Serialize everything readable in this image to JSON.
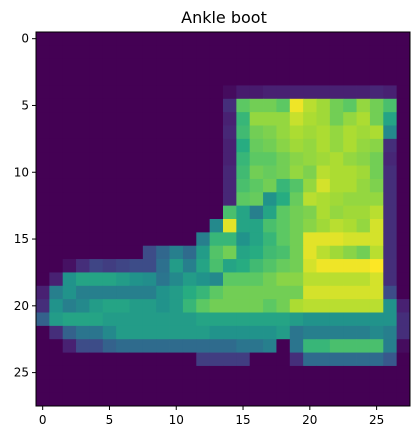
{
  "chart_data": {
    "type": "heatmap",
    "title": "Ankle boot",
    "xlabel": "",
    "ylabel": "",
    "colormap": "viridis",
    "colors": {
      "low": "#440154",
      "mid": "#21918c",
      "high": "#fde725"
    },
    "shape": [
      28,
      28
    ],
    "value_range": [
      0,
      255
    ],
    "xlim": [
      -0.5,
      27.5
    ],
    "ylim": [
      27.5,
      -0.5
    ],
    "x_ticks": [
      {
        "value": 0,
        "label": "0"
      },
      {
        "value": 5,
        "label": "5"
      },
      {
        "value": 10,
        "label": "10"
      },
      {
        "value": 15,
        "label": "15"
      },
      {
        "value": 20,
        "label": "20"
      },
      {
        "value": 25,
        "label": "25"
      }
    ],
    "y_ticks": [
      {
        "value": 0,
        "label": "0"
      },
      {
        "value": 5,
        "label": "5"
      },
      {
        "value": 10,
        "label": "10"
      },
      {
        "value": 15,
        "label": "15"
      },
      {
        "value": 20,
        "label": "20"
      },
      {
        "value": 25,
        "label": "25"
      }
    ],
    "grid": false,
    "legend": "none",
    "values": [
      [
        0,
        0,
        0,
        0,
        0,
        0,
        0,
        0,
        0,
        0,
        0,
        0,
        0,
        0,
        0,
        0,
        0,
        0,
        0,
        0,
        0,
        0,
        0,
        0,
        0,
        0,
        0,
        0
      ],
      [
        0,
        0,
        0,
        0,
        0,
        0,
        0,
        0,
        0,
        0,
        0,
        0,
        0,
        0,
        0,
        0,
        0,
        0,
        0,
        0,
        0,
        0,
        0,
        0,
        0,
        0,
        0,
        0
      ],
      [
        0,
        0,
        0,
        0,
        0,
        0,
        0,
        0,
        0,
        0,
        0,
        0,
        0,
        0,
        0,
        0,
        0,
        0,
        0,
        0,
        0,
        0,
        0,
        0,
        0,
        0,
        0,
        0
      ],
      [
        0,
        0,
        0,
        0,
        0,
        0,
        0,
        0,
        0,
        0,
        0,
        0,
        0,
        0,
        0,
        0,
        0,
        0,
        0,
        0,
        0,
        0,
        0,
        0,
        0,
        0,
        0,
        0
      ],
      [
        0,
        0,
        0,
        0,
        0,
        0,
        0,
        0,
        0,
        0,
        0,
        0,
        0,
        0,
        10,
        25,
        25,
        30,
        30,
        30,
        30,
        30,
        30,
        30,
        30,
        35,
        30,
        0
      ],
      [
        0,
        0,
        0,
        0,
        0,
        0,
        0,
        0,
        0,
        0,
        0,
        0,
        0,
        0,
        40,
        190,
        200,
        200,
        190,
        250,
        230,
        220,
        200,
        190,
        215,
        200,
        180,
        0
      ],
      [
        0,
        0,
        0,
        0,
        0,
        0,
        0,
        0,
        0,
        0,
        0,
        0,
        0,
        0,
        30,
        170,
        215,
        215,
        215,
        235,
        225,
        220,
        200,
        215,
        225,
        200,
        150,
        0
      ],
      [
        0,
        0,
        0,
        0,
        0,
        0,
        0,
        0,
        0,
        0,
        0,
        0,
        0,
        0,
        35,
        175,
        200,
        205,
        215,
        225,
        220,
        225,
        215,
        225,
        220,
        225,
        120,
        0
      ],
      [
        0,
        0,
        0,
        0,
        0,
        0,
        0,
        0,
        0,
        0,
        0,
        0,
        0,
        0,
        30,
        160,
        195,
        200,
        210,
        220,
        215,
        225,
        215,
        225,
        215,
        210,
        40,
        0
      ],
      [
        0,
        0,
        0,
        0,
        0,
        0,
        0,
        0,
        0,
        0,
        0,
        0,
        0,
        0,
        30,
        170,
        190,
        190,
        200,
        210,
        215,
        220,
        225,
        215,
        210,
        200,
        35,
        0
      ],
      [
        0,
        0,
        0,
        0,
        0,
        0,
        0,
        0,
        0,
        0,
        0,
        0,
        0,
        0,
        35,
        175,
        200,
        195,
        200,
        215,
        205,
        230,
        225,
        225,
        220,
        200,
        40,
        0
      ],
      [
        0,
        0,
        0,
        0,
        0,
        0,
        0,
        0,
        0,
        0,
        0,
        0,
        0,
        0,
        35,
        180,
        190,
        200,
        170,
        185,
        215,
        240,
        225,
        225,
        215,
        205,
        40,
        0
      ],
      [
        0,
        0,
        0,
        0,
        0,
        0,
        0,
        0,
        0,
        0,
        0,
        0,
        0,
        0,
        35,
        190,
        195,
        130,
        160,
        195,
        230,
        225,
        220,
        215,
        215,
        215,
        40,
        0
      ],
      [
        0,
        0,
        0,
        0,
        0,
        0,
        0,
        0,
        0,
        0,
        0,
        0,
        0,
        0,
        180,
        150,
        110,
        150,
        190,
        200,
        205,
        225,
        215,
        220,
        220,
        230,
        40,
        0
      ],
      [
        0,
        0,
        0,
        0,
        0,
        0,
        0,
        0,
        0,
        0,
        0,
        0,
        0,
        120,
        245,
        150,
        150,
        180,
        190,
        200,
        210,
        220,
        230,
        225,
        215,
        240,
        40,
        0
      ],
      [
        0,
        0,
        0,
        0,
        0,
        0,
        0,
        0,
        0,
        0,
        0,
        0,
        110,
        170,
        170,
        130,
        150,
        170,
        190,
        200,
        245,
        245,
        245,
        240,
        240,
        240,
        40,
        0
      ],
      [
        0,
        0,
        0,
        0,
        0,
        0,
        0,
        0,
        60,
        85,
        110,
        90,
        140,
        185,
        200,
        150,
        160,
        175,
        180,
        200,
        245,
        230,
        220,
        210,
        200,
        230,
        40,
        0
      ],
      [
        0,
        0,
        15,
        40,
        55,
        50,
        55,
        60,
        60,
        95,
        140,
        110,
        150,
        180,
        150,
        160,
        175,
        185,
        195,
        200,
        240,
        250,
        250,
        250,
        250,
        255,
        40,
        0
      ],
      [
        0,
        30,
        130,
        150,
        150,
        150,
        140,
        130,
        125,
        100,
        120,
        140,
        130,
        120,
        190,
        190,
        190,
        200,
        210,
        210,
        230,
        230,
        230,
        230,
        230,
        240,
        40,
        0
      ],
      [
        30,
        110,
        130,
        110,
        110,
        110,
        110,
        110,
        110,
        130,
        140,
        160,
        170,
        190,
        200,
        200,
        200,
        200,
        200,
        200,
        240,
        240,
        240,
        240,
        240,
        240,
        60,
        0
      ],
      [
        40,
        130,
        110,
        120,
        140,
        150,
        150,
        140,
        140,
        130,
        140,
        170,
        190,
        200,
        200,
        200,
        200,
        190,
        200,
        225,
        230,
        230,
        230,
        230,
        230,
        230,
        130,
        30
      ],
      [
        80,
        140,
        150,
        150,
        150,
        140,
        140,
        140,
        140,
        140,
        140,
        140,
        150,
        150,
        150,
        150,
        150,
        150,
        150,
        140,
        130,
        130,
        130,
        130,
        130,
        130,
        130,
        40
      ],
      [
        0,
        40,
        80,
        100,
        100,
        120,
        140,
        140,
        140,
        140,
        140,
        140,
        140,
        130,
        130,
        130,
        130,
        130,
        140,
        100,
        110,
        110,
        110,
        110,
        110,
        120,
        110,
        40
      ],
      [
        0,
        0,
        30,
        60,
        60,
        80,
        90,
        90,
        90,
        90,
        90,
        90,
        90,
        90,
        90,
        100,
        100,
        110,
        0,
        100,
        170,
        170,
        180,
        180,
        180,
        180,
        110,
        10
      ],
      [
        0,
        0,
        0,
        0,
        0,
        0,
        0,
        0,
        0,
        0,
        0,
        0,
        50,
        50,
        50,
        50,
        0,
        0,
        0,
        40,
        90,
        90,
        90,
        90,
        90,
        90,
        70,
        0
      ],
      [
        0,
        0,
        0,
        0,
        0,
        0,
        0,
        0,
        0,
        0,
        0,
        0,
        0,
        0,
        0,
        0,
        0,
        0,
        0,
        0,
        0,
        0,
        0,
        0,
        0,
        0,
        0,
        0
      ],
      [
        0,
        0,
        0,
        0,
        0,
        0,
        0,
        0,
        0,
        0,
        0,
        0,
        0,
        0,
        0,
        0,
        0,
        0,
        0,
        0,
        0,
        0,
        0,
        0,
        0,
        0,
        0,
        0
      ],
      [
        0,
        0,
        0,
        0,
        0,
        0,
        0,
        0,
        0,
        0,
        0,
        0,
        0,
        0,
        0,
        0,
        0,
        0,
        0,
        0,
        0,
        0,
        0,
        0,
        0,
        0,
        0,
        0
      ]
    ]
  }
}
